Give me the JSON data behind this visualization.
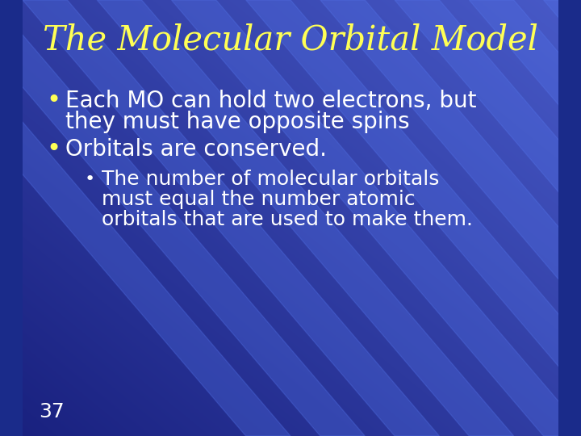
{
  "title": "The Molecular Orbital Model",
  "title_color": "#FFFF55",
  "title_fontsize": 30,
  "bg_color_dark": "#1a2b8a",
  "bg_color_mid": "#2244bb",
  "bg_color_light": "#4466cc",
  "stripe_color": "#5577dd",
  "bullet1_text_line1": "Each MO can hold two electrons, but",
  "bullet1_text_line2": "they must have opposite spins",
  "bullet2_text": "Orbitals are conserved.",
  "sub_bullet_line1": "The number of molecular orbitals",
  "sub_bullet_line2": "must equal the number atomic",
  "sub_bullet_line3": "orbitals that are used to make them.",
  "text_color_white": "#FFFFFF",
  "bullet_color": "#FFFF55",
  "sub_bullet_color": "#FFFFFF",
  "body_fontsize": 20,
  "sub_fontsize": 18,
  "slide_number": "37",
  "slide_number_color": "#FFFFFF",
  "slide_number_fontsize": 18,
  "title_font": "DejaVu Serif",
  "body_font": "DejaVu Sans"
}
